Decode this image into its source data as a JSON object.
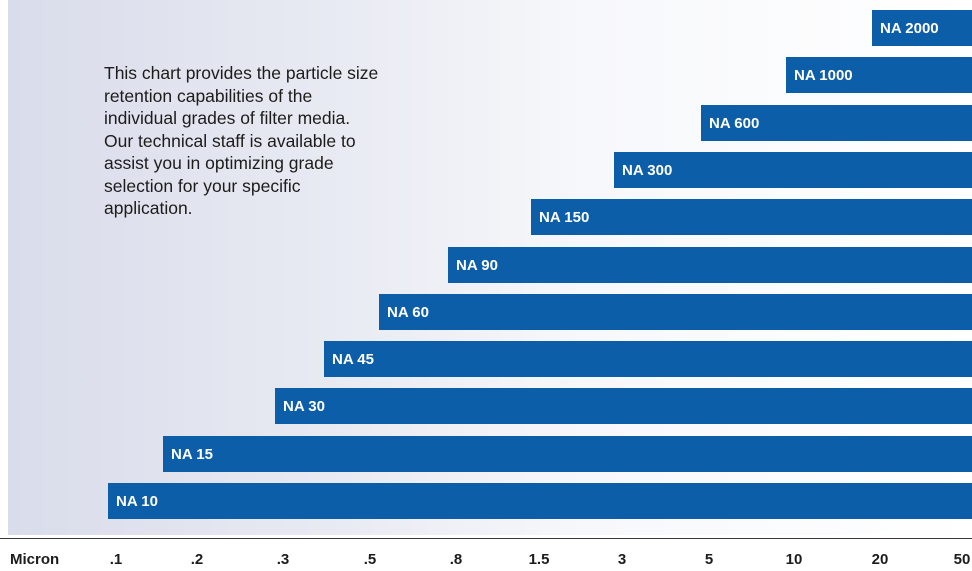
{
  "description": "This chart provides the particle size retention capabilities of the individual grades of filter media.  Our technical staff is available to assist you in optimizing grade selection for your specific application.",
  "chart_data": {
    "type": "bar",
    "orientation": "horizontal",
    "bar_color": "#0d5ea8",
    "label_color": "#ffffff",
    "xlabel": "Micron",
    "x_ticks": [
      ".1",
      ".2",
      ".3",
      ".5",
      ".8",
      "1.5",
      "3",
      "5",
      "10",
      "20",
      "50"
    ],
    "x_tick_values": [
      0.1,
      0.2,
      0.3,
      0.5,
      0.8,
      1.5,
      3,
      5,
      10,
      20,
      50
    ],
    "xlim": [
      0.1,
      50
    ],
    "x_scale": "ordinal tick spacing (nonlinear micron scale)",
    "bars_extend_to": 50,
    "categories": [
      "NA 2000",
      "NA 1000",
      "NA 600",
      "NA 300",
      "NA 150",
      "NA 90",
      "NA 60",
      "NA 45",
      "NA 30",
      "NA 15",
      "NA 10"
    ],
    "start_micron": [
      20,
      10,
      5,
      3,
      1.5,
      0.8,
      0.55,
      0.4,
      0.3,
      0.16,
      0.1
    ]
  }
}
